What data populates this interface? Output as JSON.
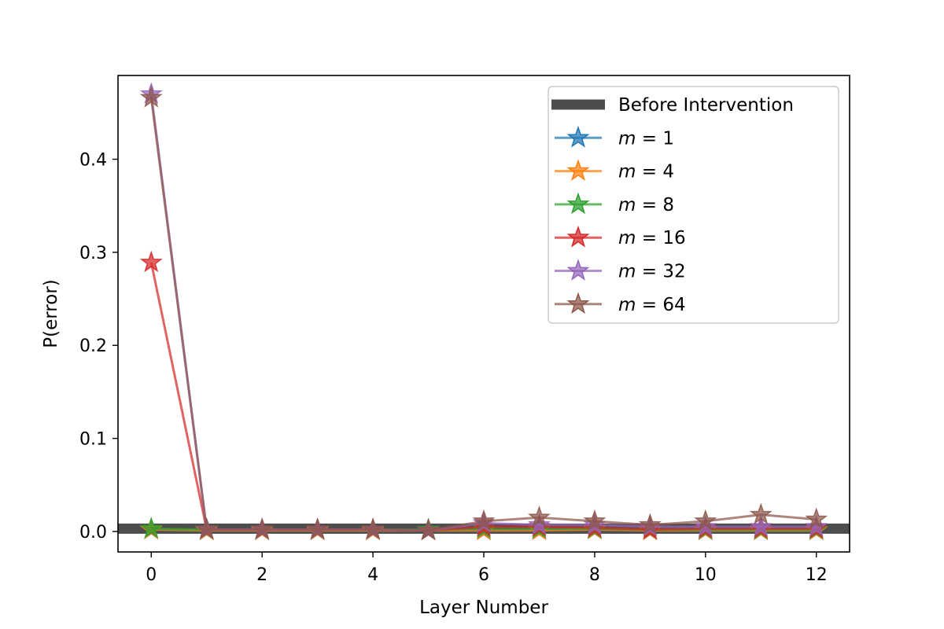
{
  "chart_data": {
    "type": "line",
    "xlabel": "Layer Number",
    "ylabel": "P(error)",
    "xlim": [
      -0.6,
      12.6
    ],
    "ylim": [
      -0.022,
      0.49
    ],
    "xticks": [
      0,
      2,
      4,
      6,
      8,
      10,
      12
    ],
    "yticks": [
      0.0,
      0.1,
      0.2,
      0.3,
      0.4
    ],
    "xtick_labels": [
      "0",
      "2",
      "4",
      "6",
      "8",
      "10",
      "12"
    ],
    "ytick_labels": [
      "0.0",
      "0.1",
      "0.2",
      "0.3",
      "0.4"
    ],
    "baseline": {
      "name": "Before Intervention",
      "value": 0.003,
      "color": "#4d4d4d"
    },
    "legend_position": "upper right",
    "x": [
      0,
      1,
      2,
      3,
      4,
      5,
      6,
      7,
      8,
      9,
      10,
      11,
      12
    ],
    "series": [
      {
        "name": "m = 1",
        "var": "m",
        "num": "1",
        "color": "#1f77b4",
        "values": [
          0.002,
          0.001,
          0.001,
          0.001,
          0.001,
          0.001,
          0.001,
          0.002,
          0.002,
          0.001,
          0.001,
          0.001,
          0.001
        ]
      },
      {
        "name": "m = 4",
        "var": "m",
        "num": "4",
        "color": "#ff7f0e",
        "values": [
          0.002,
          0.001,
          0.001,
          0.001,
          0.001,
          0.001,
          0.001,
          0.001,
          0.002,
          0.001,
          0.001,
          0.001,
          0.001
        ]
      },
      {
        "name": "m = 8",
        "var": "m",
        "num": "8",
        "color": "#2ca02c",
        "values": [
          0.003,
          0.002,
          0.002,
          0.002,
          0.002,
          0.002,
          0.003,
          0.003,
          0.003,
          0.002,
          0.002,
          0.002,
          0.002
        ]
      },
      {
        "name": "m = 16",
        "var": "m",
        "num": "16",
        "color": "#d62728",
        "values": [
          0.289,
          0.002,
          0.002,
          0.002,
          0.002,
          0.001,
          0.005,
          0.005,
          0.004,
          0.002,
          0.003,
          0.003,
          0.003
        ]
      },
      {
        "name": "m = 32",
        "var": "m",
        "num": "32",
        "color": "#9467bd",
        "values": [
          0.47,
          0.002,
          0.002,
          0.002,
          0.002,
          0.001,
          0.009,
          0.007,
          0.007,
          0.005,
          0.005,
          0.005,
          0.005
        ]
      },
      {
        "name": "m = 64",
        "var": "m",
        "num": "64",
        "color": "#8c564b",
        "values": [
          0.466,
          0.002,
          0.002,
          0.002,
          0.002,
          0.001,
          0.011,
          0.015,
          0.011,
          0.007,
          0.011,
          0.018,
          0.013
        ]
      }
    ]
  }
}
